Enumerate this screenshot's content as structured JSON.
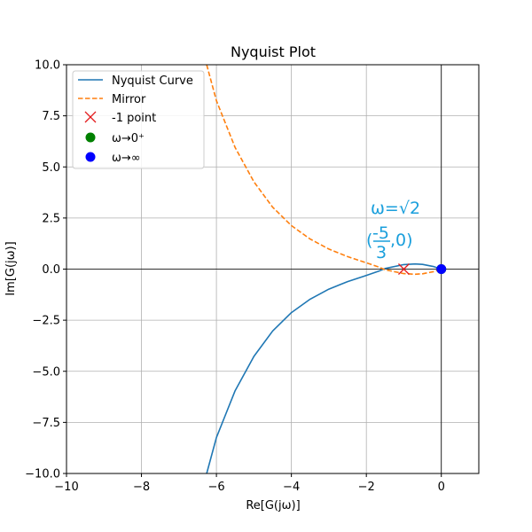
{
  "chart_data": {
    "type": "line",
    "title": "Nyquist Plot",
    "xlabel": "Re[G(jω)]",
    "ylabel": "Im[G(jω)]",
    "xlim": [
      -10,
      1
    ],
    "ylim": [
      -10,
      10
    ],
    "xticks": [
      -10,
      -8,
      -6,
      -4,
      -2,
      0
    ],
    "yticks": [
      -10.0,
      -7.5,
      -5.0,
      -2.5,
      0.0,
      2.5,
      5.0,
      7.5,
      10.0
    ],
    "xtick_labels": [
      "−10",
      "−8",
      "−6",
      "−4",
      "−2",
      "0"
    ],
    "ytick_labels": [
      "−10.0",
      "−7.5",
      "−5.0",
      "−2.5",
      "0.0",
      "2.5",
      "5.0",
      "7.5",
      "10.0"
    ],
    "grid": true,
    "legend_position": "top-left",
    "series": [
      {
        "name": "Nyquist Curve",
        "style": "solid",
        "color": "#1f77b4",
        "x": [
          -6.26,
          -6.0,
          -5.5,
          -5.0,
          -4.5,
          -4.0,
          -3.5,
          -3.0,
          -2.5,
          -2.0,
          -1.667,
          -1.5,
          -1.0,
          -0.7,
          -0.5,
          -0.2,
          0.0
        ],
        "y": [
          -10.0,
          -8.24,
          -5.95,
          -4.27,
          -3.03,
          -2.13,
          -1.47,
          -0.98,
          -0.61,
          -0.31,
          -0.1,
          0.03,
          0.22,
          0.25,
          0.23,
          0.12,
          0.0
        ]
      },
      {
        "name": "Mirror",
        "style": "dashed",
        "color": "#ff7f0e",
        "x": [
          -6.26,
          -6.0,
          -5.5,
          -5.0,
          -4.5,
          -4.0,
          -3.5,
          -3.0,
          -2.5,
          -2.0,
          -1.667,
          -1.5,
          -1.0,
          -0.7,
          -0.5,
          -0.2,
          0.0
        ],
        "y": [
          10.0,
          8.24,
          5.95,
          4.27,
          3.03,
          2.13,
          1.47,
          0.98,
          0.61,
          0.31,
          0.1,
          -0.03,
          -0.22,
          -0.25,
          -0.23,
          -0.12,
          0.0
        ]
      }
    ],
    "points": [
      {
        "name": "-1 point",
        "marker": "x",
        "color": "#e31a1c",
        "x": -1,
        "y": 0
      },
      {
        "name": "ω→0⁺",
        "marker": "circle",
        "color": "#008000",
        "x": 0,
        "y": 0
      },
      {
        "name": "ω→∞",
        "marker": "circle",
        "color": "#0000ff",
        "x": 0,
        "y": 0
      }
    ],
    "legend": [
      "Nyquist Curve",
      "Mirror",
      "-1 point",
      "ω→0⁺",
      "ω→∞"
    ],
    "annotations": {
      "omega_text": "ω=√2",
      "point_text_open": "(",
      "point_text_num": "-5",
      "point_text_den": "3",
      "point_text_close": ",0)",
      "color": "#1a9fdc"
    }
  }
}
